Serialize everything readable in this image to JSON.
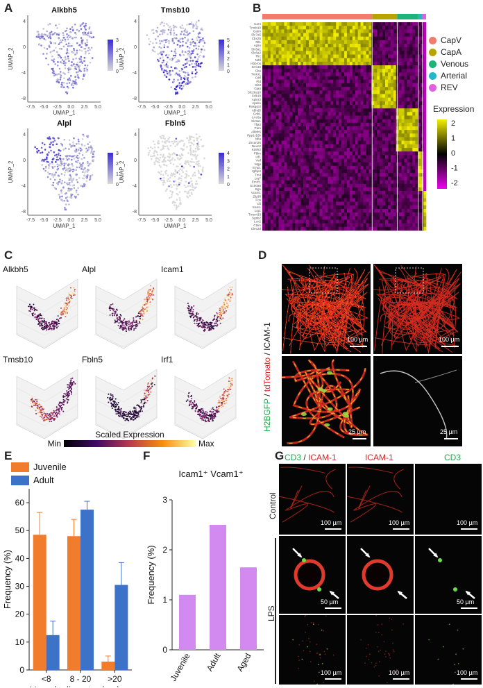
{
  "panels": {
    "A": "A",
    "B": "B",
    "C": "C",
    "D": "D",
    "E": "E",
    "F": "F",
    "G": "G"
  },
  "panelA": {
    "plots": [
      {
        "gene": "Alkbh5",
        "legend": [
          "3",
          "2",
          "1",
          "0"
        ],
        "scale_max": 3
      },
      {
        "gene": "Tmsb10",
        "legend": [
          "5",
          "4",
          "3",
          "2",
          "1",
          "0"
        ],
        "scale_max": 5
      },
      {
        "gene": "Alpl",
        "legend": [
          "3",
          "2",
          "1",
          "0"
        ],
        "scale_max": 3
      },
      {
        "gene": "Fbln5",
        "legend": [
          "4",
          "3",
          "2",
          "1",
          "0"
        ],
        "scale_max": 4
      }
    ],
    "xlabel": "UMAP_1",
    "ylabel": "UMAP_2",
    "xticks": [
      "-7.5",
      "-5.0",
      "-2.5",
      "0.0",
      "2.5",
      "5.0"
    ],
    "yticks": [
      "4",
      "0",
      "-4",
      "-8"
    ],
    "low_color": "#d9d9d9",
    "high_color": "#3a2bd6"
  },
  "panelB": {
    "genes": [
      "Car4",
      "Tmsb10",
      "Gatm",
      "Slc7a5",
      "Cbx2b",
      "Mt1",
      "Aplin",
      "Slc6a1",
      "Slc6a2",
      "Tfrc",
      "Ndrl",
      "Hbb-bs",
      "Srm16",
      "Gka",
      "Tmlcr1",
      "Cdrl",
      "Pld",
      "Slit3",
      "Gja4",
      "Slc26a10",
      "Cdk19",
      "Aplnr2",
      "Apelin",
      "Rasgrp3",
      "Abhd5",
      "Gnb1",
      "Lrrc8a",
      "Slc9a1",
      "Tfpi2",
      "Pam",
      "Alkbh5",
      "Ppp1r16b",
      "Nfia",
      "Zscan26",
      "Nexn2",
      "Kdelr2",
      "Fblm",
      "Ltf1",
      "Vwf",
      "Mgp",
      "Emp1",
      "Igfbp4",
      "Tm4",
      "Lrg7",
      "Emrc1",
      "S100a6",
      "Bgn",
      "Vcam1",
      "Zfp36",
      "Fos",
      "Cfi",
      "Icam1",
      "Lrg1",
      "Tmem33",
      "Sgsb2",
      "Lcn2",
      "Ctsm",
      "Clec2d"
    ],
    "clusters": [
      "CapV",
      "CapA",
      "Venous",
      "Arterial",
      "REV"
    ],
    "cluster_colors": [
      "#f27b6b",
      "#b8a400",
      "#1db37a",
      "#26b6c8",
      "#e45ee0"
    ],
    "cluster_fractions": [
      0.57,
      0.13,
      0.11,
      0.02,
      0.02
    ],
    "legend_title": "Expression",
    "legend_ticks": [
      "2",
      "1",
      "0",
      "-1",
      "-2"
    ]
  },
  "panelC": {
    "genes": [
      "Alkbh5",
      "Alpl",
      "Icam1",
      "Tmsb10",
      "Fbln5",
      "Irf1"
    ],
    "scale_title": "Scaled Expression",
    "scale_min": "Min",
    "scale_max": "Max"
  },
  "panelD": {
    "ylabel_h2b": "H2BGFP",
    "ylabel_sep1": " / ",
    "ylabel_td": "tdTomato",
    "ylabel_sep2": " / ",
    "ylabel_icam": "ICAM-1",
    "scale_top": "100 µm",
    "scale_bottom": "25 µm"
  },
  "panelE": {
    "legend": [
      "Juvenile",
      "Adult"
    ],
    "colors": [
      "#f07c2c",
      "#3c72c8"
    ],
    "ylabel": "Frequency (%)",
    "xlabel": "Vessels diameter (μm)",
    "yticks": [
      "0",
      "10",
      "20",
      "30",
      "40",
      "50",
      "60"
    ]
  },
  "panelF": {
    "title": "Icam1⁺ Vcam1⁺",
    "ylabel": "Frequency (%)",
    "yticks": [
      "0",
      "1",
      "2",
      "3"
    ],
    "color": "#d38af0"
  },
  "panelG": {
    "col1_cd3": "CD3",
    "col1_sep": " / ",
    "col1_icam": "ICAM-1",
    "col2": "ICAM-1",
    "col3": "CD3",
    "row_control": "Control",
    "row_lps": "LPS",
    "scale_100": "100 µm",
    "scale_50": "50 µm"
  },
  "chart_data": [
    {
      "type": "bar",
      "title": "",
      "categories": [
        "<8",
        "8 - 20",
        ">20"
      ],
      "series": [
        {
          "name": "Juvenile",
          "values": [
            48.5,
            48,
            3
          ],
          "errors": [
            8,
            6,
            2
          ]
        },
        {
          "name": "Adult",
          "values": [
            12.5,
            57.5,
            30.5
          ],
          "errors": [
            5,
            3,
            8
          ]
        }
      ],
      "xlabel": "Vessels diameter (μm)",
      "ylabel": "Frequency (%)",
      "ylim": [
        0,
        65
      ]
    },
    {
      "type": "bar",
      "title": "Icam1⁺ Vcam1⁺",
      "categories": [
        "Juvenile",
        "Adult",
        "Aged"
      ],
      "values": [
        1.1,
        2.5,
        1.65
      ],
      "xlabel": "",
      "ylabel": "Frequency (%)",
      "ylim": [
        0,
        3
      ]
    }
  ]
}
